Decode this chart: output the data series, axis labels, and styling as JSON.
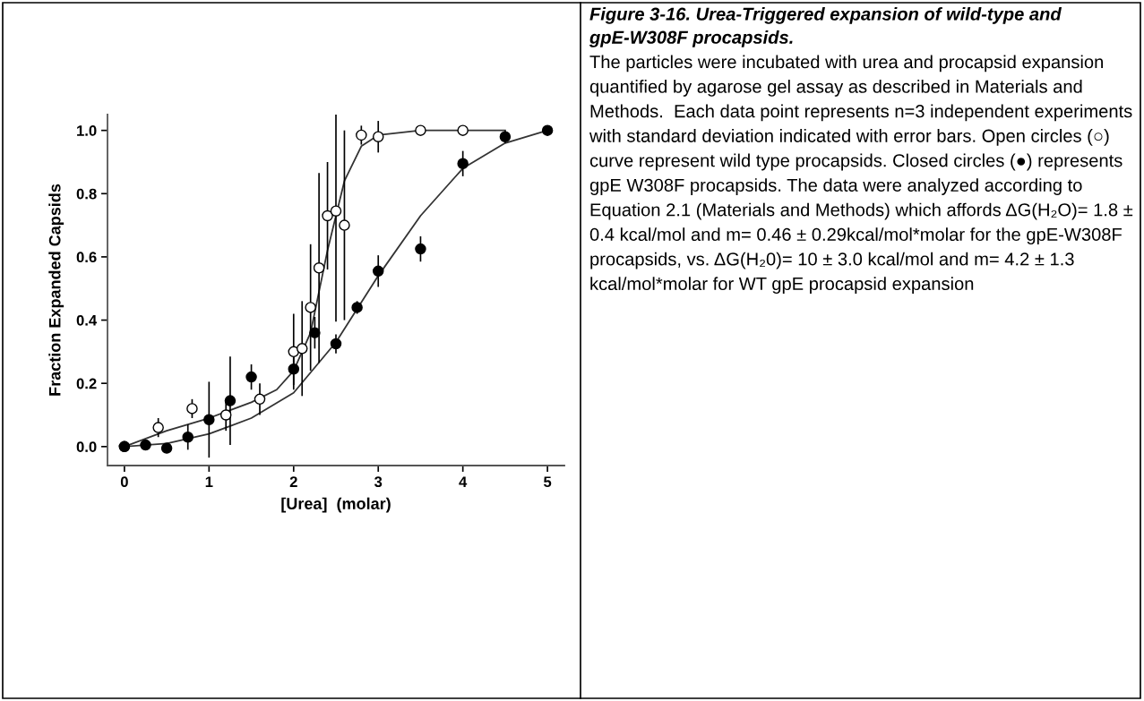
{
  "chart_data": {
    "type": "scatter",
    "xlabel": "[Urea]  (molar)",
    "ylabel": "Fraction Expanded Capsids",
    "xlim": [
      -0.2,
      5.2
    ],
    "ylim": [
      -0.06,
      1.05
    ],
    "xticks": [
      0,
      1,
      2,
      3,
      4,
      5
    ],
    "yticks": [
      {
        "value": 0,
        "label": "0.0"
      },
      {
        "value": 0.2,
        "label": "0.2"
      },
      {
        "value": 0.4,
        "label": "0.4"
      },
      {
        "value": 0.6,
        "label": "0.6"
      },
      {
        "value": 0.8,
        "label": "0.8"
      },
      {
        "value": 1.0,
        "label": "1.0"
      }
    ],
    "grid": false,
    "series": [
      {
        "marker": "circle",
        "color": "#000000",
        "x": [
          0,
          0.4,
          0.8,
          1.2,
          1.6,
          2.0,
          2.1,
          2.2,
          2.3,
          2.4,
          2.5,
          2.6,
          2.8,
          3.0,
          3.5,
          4.0
        ],
        "values": [
          0,
          0.06,
          0.12,
          0.1,
          0.15,
          0.3,
          0.31,
          0.44,
          0.565,
          0.73,
          0.745,
          0.7,
          0.985,
          0.98,
          1.0,
          1.0
        ],
        "errors": [
          null,
          0.03,
          0.03,
          0.05,
          0.05,
          0.12,
          0.15,
          0.2,
          0.3,
          0.17,
          0.35,
          0.3,
          0.03,
          0.05,
          0.01,
          0.01
        ]
      },
      {
        "marker": "circle",
        "color": "#000000",
        "x": [
          0,
          0.25,
          0.5,
          0.75,
          1.0,
          1.25,
          1.5,
          2.0,
          2.25,
          2.5,
          2.75,
          3.0,
          3.5,
          4.0,
          4.5,
          5.0
        ],
        "values": [
          0,
          0.005,
          -0.005,
          0.03,
          0.085,
          0.145,
          0.22,
          0.245,
          0.36,
          0.325,
          0.44,
          0.555,
          0.625,
          0.895,
          0.98,
          1.0
        ],
        "errors": [
          null,
          null,
          null,
          0.04,
          0.12,
          0.14,
          0.04,
          0.05,
          0.05,
          0.03,
          0.02,
          0.05,
          0.04,
          0.04,
          0.02,
          null
        ]
      },
      {
        "type": "line",
        "color": "#333333",
        "x": [
          0,
          0.5,
          1.0,
          1.5,
          1.8,
          2.0,
          2.2,
          2.4,
          2.6,
          2.8,
          3.0,
          3.5,
          4.0,
          4.5
        ],
        "values": [
          0,
          0.05,
          0.09,
          0.14,
          0.18,
          0.24,
          0.36,
          0.62,
          0.84,
          0.95,
          0.985,
          1.0,
          1.0,
          1.0
        ]
      },
      {
        "type": "line",
        "color": "#333333",
        "x": [
          0,
          0.5,
          1.0,
          1.5,
          2.0,
          2.5,
          3.0,
          3.5,
          4.0,
          4.5,
          5.0
        ],
        "values": [
          0,
          0.01,
          0.04,
          0.09,
          0.17,
          0.33,
          0.54,
          0.73,
          0.88,
          0.96,
          1.0
        ]
      }
    ],
    "annotations": [
      "Figure 3-16. Urea-Triggered expansion of wild-type and gpE-W308F procapsids.",
      "The particles were incubated with urea and procapsid expansion quantified by agarose gel assay as described in Materials and Methods.  Each data point represents n=3 independent experiments with standard deviation indicated with error bars. Open circles (○) curve represent wild type procapsids. Closed circles (●) represents gpE W308F procapsids. The data were analyzed according to Equation 2.1 (Materials and Methods) which affords ΔG(H₂O)= 1.8 ± 0.4 kcal/mol and m= 0.46 ± 0.29kcal/mol*molar for the gpE-W308F procapsids, vs. ΔG(H₂0)= 10 ± 3.0 kcal/mol and m= 4.2 ± 1.3 kcal/mol*molar for WT gpE procapsid expansion"
    ]
  }
}
